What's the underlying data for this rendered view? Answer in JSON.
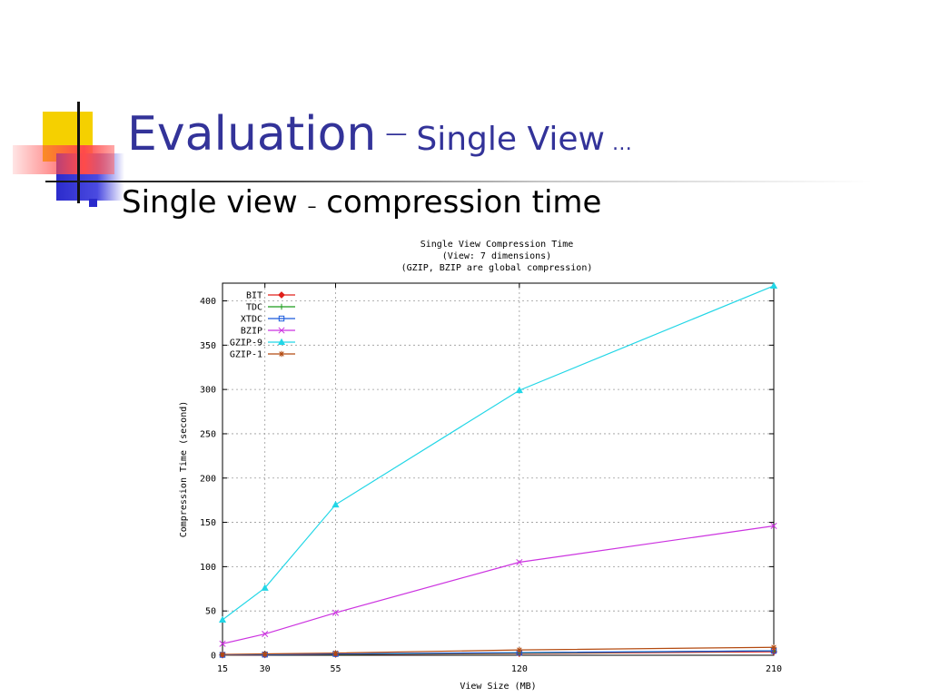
{
  "slide": {
    "title": "Evaluation",
    "title_dash": "—",
    "title_sub": "Single View",
    "title_dots": "…",
    "bullet_pre": "Single view",
    "bullet_dash": "–",
    "bullet_post": "compression time"
  },
  "chart_data": {
    "type": "line",
    "title": [
      "Single View Compression Time",
      "(View: 7 dimensions)",
      "(GZIP, BZIP are global compression)"
    ],
    "xlabel": "View Size (MB)",
    "ylabel": "Compression Time (second)",
    "x": [
      15,
      30,
      55,
      120,
      210
    ],
    "x_ticks": [
      15,
      30,
      55,
      120,
      210
    ],
    "xlim": [
      15,
      210
    ],
    "ylim": [
      0,
      420
    ],
    "y_ticks": [
      0,
      50,
      100,
      150,
      200,
      250,
      300,
      350,
      400
    ],
    "grid": true,
    "legend_position": "top-left",
    "series": [
      {
        "name": "BIT",
        "color": "#e0201a",
        "marker": "diamond",
        "values": [
          0.3,
          0.5,
          1,
          2,
          4
        ]
      },
      {
        "name": "TDC",
        "color": "#1a9c1a",
        "marker": "plus",
        "values": [
          0.4,
          0.7,
          1.2,
          2.5,
          5
        ]
      },
      {
        "name": "XTDC",
        "color": "#1a5adc",
        "marker": "square",
        "values": [
          0.5,
          0.8,
          1.5,
          3,
          5
        ]
      },
      {
        "name": "BZIP",
        "color": "#cc33e0",
        "marker": "x",
        "values": [
          13,
          24,
          48,
          105,
          146
        ]
      },
      {
        "name": "GZIP-9",
        "color": "#22d6e6",
        "marker": "triangle",
        "values": [
          40,
          76,
          170,
          299,
          417
        ]
      },
      {
        "name": "GZIP-1",
        "color": "#b34a10",
        "marker": "star",
        "values": [
          1,
          1.5,
          2.5,
          6,
          9
        ]
      }
    ]
  }
}
